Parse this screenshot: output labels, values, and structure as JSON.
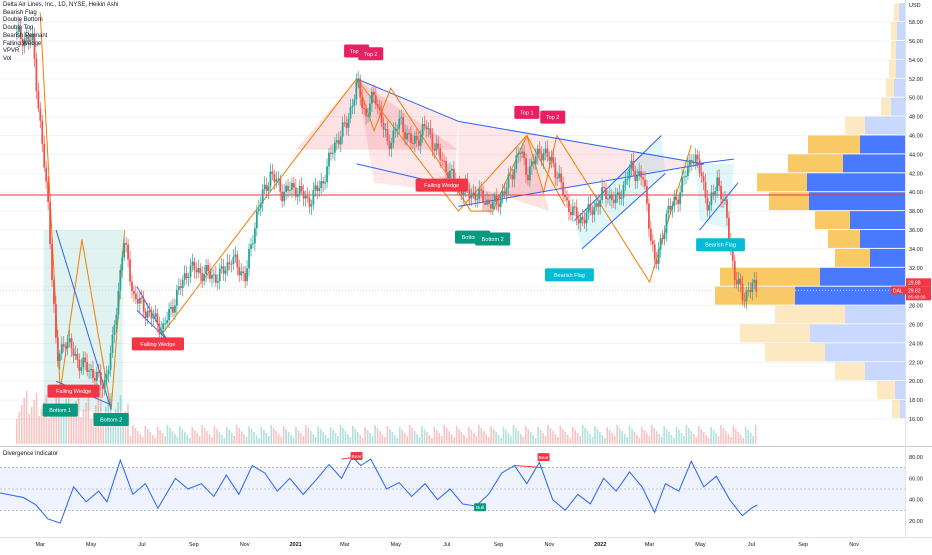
{
  "chart_data": [
    {
      "type": "candlestick",
      "title": "Delta Air Lines, Inc., 1D, NYSE, Heikin Ashi",
      "indicators": [
        "Bearish Flag",
        "Double Bottom",
        "Double Top",
        "Bearish Pennant",
        "Falling Wedge",
        "VPVR",
        "Vol"
      ],
      "y_unit": "USD",
      "y_ticks": [
        58,
        56,
        54,
        52,
        50,
        48,
        46,
        44,
        42,
        40,
        38,
        36,
        34,
        32,
        30,
        28,
        26,
        24,
        22,
        20,
        18,
        16
      ],
      "y_ticks_labels": [
        "58.00",
        "56.00",
        "54.00",
        "52.00",
        "50.00",
        "48.00",
        "46.00",
        "44.00",
        "42.00",
        "40.00",
        "38.00",
        "36.00",
        "34.00",
        "32.00",
        "30.00",
        "28.00",
        "26.00",
        "24.00",
        "22.00",
        "20.00",
        "18.00",
        "16.00"
      ],
      "ylim": [
        15.0,
        60.0
      ],
      "x_ticks": [
        "Mar",
        "May",
        "Jul",
        "Sep",
        "Nov",
        "2021",
        "Mar",
        "May",
        "Jul",
        "Sep",
        "Nov",
        "2022",
        "Mar",
        "May",
        "Jul",
        "Sep",
        "Nov"
      ],
      "price_series": {
        "name": "DAL",
        "points": [
          [
            "2020-01",
            57.5
          ],
          [
            "2020-02-20",
            56.0
          ],
          [
            "2020-02-28",
            48.0
          ],
          [
            "2020-03-10",
            38.0
          ],
          [
            "2020-03-20",
            22.0
          ],
          [
            "2020-03-30",
            24.5
          ],
          [
            "2020-04-15",
            22.0
          ],
          [
            "2020-05-01",
            21.0
          ],
          [
            "2020-05-15",
            19.5
          ],
          [
            "2020-05-25",
            23.5
          ],
          [
            "2020-06-08",
            35.0
          ],
          [
            "2020-06-20",
            29.0
          ],
          [
            "2020-07-10",
            27.0
          ],
          [
            "2020-07-25",
            25.5
          ],
          [
            "2020-08-10",
            29.0
          ],
          [
            "2020-08-25",
            32.0
          ],
          [
            "2020-09-10",
            31.5
          ],
          [
            "2020-09-30",
            31.0
          ],
          [
            "2020-10-15",
            33.0
          ],
          [
            "2020-11-01",
            31.0
          ],
          [
            "2020-11-15",
            38.0
          ],
          [
            "2020-12-01",
            42.0
          ],
          [
            "2020-12-15",
            40.0
          ],
          [
            "2020-12-31",
            40.5
          ],
          [
            "2021-01-15",
            39.0
          ],
          [
            "2021-02-01",
            41.0
          ],
          [
            "2021-02-15",
            45.0
          ],
          [
            "2021-03-01",
            47.0
          ],
          [
            "2021-03-15",
            51.5
          ],
          [
            "2021-03-25",
            48.0
          ],
          [
            "2021-04-05",
            50.5
          ],
          [
            "2021-04-20",
            45.0
          ],
          [
            "2021-05-05",
            47.5
          ],
          [
            "2021-05-20",
            45.0
          ],
          [
            "2021-06-05",
            47.0
          ],
          [
            "2021-06-20",
            44.0
          ],
          [
            "2021-07-10",
            41.0
          ],
          [
            "2021-07-25",
            40.0
          ],
          [
            "2021-08-10",
            39.5
          ],
          [
            "2021-08-25",
            38.5
          ],
          [
            "2021-09-10",
            40.5
          ],
          [
            "2021-09-25",
            44.5
          ],
          [
            "2021-10-05",
            42.0
          ],
          [
            "2021-10-20",
            44.5
          ],
          [
            "2021-11-05",
            43.0
          ],
          [
            "2021-11-20",
            39.0
          ],
          [
            "2021-12-05",
            37.0
          ],
          [
            "2021-12-20",
            38.0
          ],
          [
            "2022-01-05",
            40.0
          ],
          [
            "2022-01-20",
            39.0
          ],
          [
            "2022-02-05",
            42.5
          ],
          [
            "2022-02-20",
            41.5
          ],
          [
            "2022-03-07",
            32.0
          ],
          [
            "2022-03-20",
            37.5
          ],
          [
            "2022-04-05",
            40.0
          ],
          [
            "2022-04-20",
            44.0
          ],
          [
            "2022-05-01",
            42.0
          ],
          [
            "2022-05-10",
            38.0
          ],
          [
            "2022-05-20",
            41.5
          ],
          [
            "2022-05-30",
            38.0
          ],
          [
            "2022-06-10",
            31.0
          ],
          [
            "2022-06-20",
            29.0
          ],
          [
            "2022-07-01",
            30.0
          ],
          [
            "2022-07-08",
            29.62
          ]
        ]
      },
      "last_price": {
        "symbol": "DAL",
        "value": "29.62",
        "high_value": "29.88",
        "countdown": "05:40:06"
      },
      "horizontal_level": 39.7,
      "pattern_labels": [
        {
          "text": "Falling Wedge",
          "color": "#f23645",
          "at": [
            "2020-04-10",
            19.0
          ]
        },
        {
          "text": "Bottom 1",
          "color": "#089981",
          "at": [
            "2020-03-25",
            17.0
          ]
        },
        {
          "text": "Bottom 2",
          "color": "#089981",
          "at": [
            "2020-05-25",
            16.0
          ]
        },
        {
          "text": "Falling Wedge",
          "color": "#f23645",
          "at": [
            "2020-07-20",
            24.0
          ]
        },
        {
          "text": "Top 1",
          "color": "#e91e63",
          "at": [
            "2021-03-15",
            55.0
          ]
        },
        {
          "text": "Top 2",
          "color": "#e91e63",
          "at": [
            "2021-04-01",
            54.7
          ]
        },
        {
          "text": "Falling Wedge",
          "color": "#f23645",
          "at": [
            "2021-06-25",
            40.8
          ]
        },
        {
          "text": "Bottom 1",
          "color": "#089981",
          "at": [
            "2021-08-01",
            35.3
          ]
        },
        {
          "text": "Bottom 2",
          "color": "#089981",
          "at": [
            "2021-08-25",
            35.1
          ]
        },
        {
          "text": "Top 1",
          "color": "#e91e63",
          "at": [
            "2021-10-05",
            48.5
          ]
        },
        {
          "text": "Top 2",
          "color": "#e91e63",
          "at": [
            "2021-11-05",
            48.0
          ]
        },
        {
          "text": "Bearish Flag",
          "color": "#00bcd4",
          "at": [
            "2021-11-25",
            31.3
          ]
        },
        {
          "text": "Bearish Flag",
          "color": "#00bcd4",
          "at": [
            "2022-05-25",
            34.5
          ]
        }
      ],
      "volume_profile": {
        "series": [
          {
            "name": "up volume",
            "color": "#2962ff"
          },
          {
            "name": "down volume",
            "color": "#f7b731"
          }
        ]
      }
    },
    {
      "type": "line",
      "title": "Divergence Indicator",
      "y_ticks_labels": [
        "80.00",
        "60.00",
        "40.00",
        "20.00"
      ],
      "ylim": [
        13,
        87
      ],
      "band": [
        30,
        70
      ],
      "series": [
        {
          "points": [
            [
              "2020-01",
              48
            ],
            [
              "2020-02-10",
              42
            ],
            [
              "2020-02-25",
              35
            ],
            [
              "2020-03-10",
              22
            ],
            [
              "2020-03-25",
              18
            ],
            [
              "2020-04-10",
              52
            ],
            [
              "2020-04-25",
              38
            ],
            [
              "2020-05-10",
              48
            ],
            [
              "2020-05-20",
              38
            ],
            [
              "2020-06-05",
              77
            ],
            [
              "2020-06-20",
              45
            ],
            [
              "2020-07-05",
              55
            ],
            [
              "2020-07-20",
              32
            ],
            [
              "2020-08-10",
              60
            ],
            [
              "2020-08-25",
              50
            ],
            [
              "2020-09-10",
              55
            ],
            [
              "2020-09-25",
              43
            ],
            [
              "2020-10-10",
              63
            ],
            [
              "2020-10-25",
              45
            ],
            [
              "2020-11-10",
              72
            ],
            [
              "2020-11-25",
              65
            ],
            [
              "2020-12-10",
              48
            ],
            [
              "2020-12-25",
              60
            ],
            [
              "2021-01-10",
              45
            ],
            [
              "2021-01-25",
              58
            ],
            [
              "2021-02-10",
              73
            ],
            [
              "2021-02-25",
              60
            ],
            [
              "2021-03-10",
              80
            ],
            [
              "2021-03-20",
              72
            ],
            [
              "2021-04-01",
              78
            ],
            [
              "2021-04-20",
              50
            ],
            [
              "2021-05-05",
              56
            ],
            [
              "2021-05-20",
              43
            ],
            [
              "2021-06-05",
              55
            ],
            [
              "2021-06-20",
              40
            ],
            [
              "2021-07-05",
              50
            ],
            [
              "2021-07-20",
              36
            ],
            [
              "2021-08-05",
              34
            ],
            [
              "2021-08-20",
              45
            ],
            [
              "2021-09-05",
              65
            ],
            [
              "2021-09-20",
              72
            ],
            [
              "2021-10-05",
              55
            ],
            [
              "2021-10-20",
              75
            ],
            [
              "2021-11-05",
              40
            ],
            [
              "2021-11-20",
              30
            ],
            [
              "2021-12-05",
              45
            ],
            [
              "2021-12-20",
              36
            ],
            [
              "2022-01-05",
              60
            ],
            [
              "2022-01-20",
              48
            ],
            [
              "2022-02-05",
              66
            ],
            [
              "2022-02-20",
              52
            ],
            [
              "2022-03-07",
              28
            ],
            [
              "2022-03-20",
              55
            ],
            [
              "2022-04-05",
              48
            ],
            [
              "2022-04-20",
              76
            ],
            [
              "2022-05-05",
              52
            ],
            [
              "2022-05-20",
              62
            ],
            [
              "2022-06-05",
              40
            ],
            [
              "2022-06-20",
              25
            ],
            [
              "2022-07-01",
              32
            ],
            [
              "2022-07-08",
              35
            ]
          ],
          "color": "#2962ff"
        }
      ],
      "divergence_labels": [
        {
          "text": "Bear",
          "color": "#f23645",
          "at": [
            "2021-03-15",
            80
          ]
        },
        {
          "text": "Bear",
          "color": "#f23645",
          "at": [
            "2021-10-25",
            79
          ]
        },
        {
          "text": "Bull",
          "color": "#089981",
          "at": [
            "2021-08-10",
            32
          ]
        }
      ]
    }
  ]
}
